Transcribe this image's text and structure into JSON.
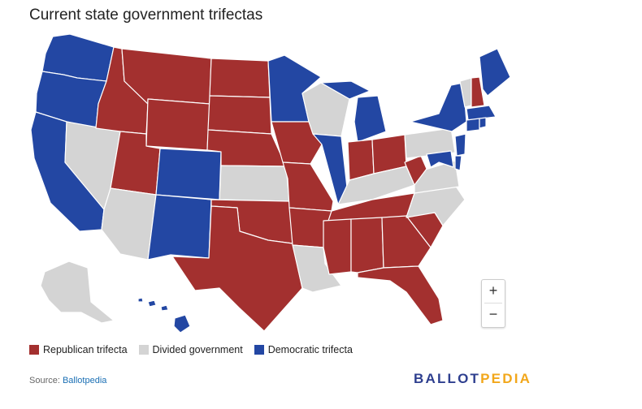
{
  "title": "Current state government trifectas",
  "legend": [
    {
      "label": "Republican trifecta",
      "color": "#a3302f"
    },
    {
      "label": "Divided government",
      "color": "#d4d4d4"
    },
    {
      "label": "Democratic trifecta",
      "color": "#2347a3"
    }
  ],
  "zoom": {
    "in_label": "+",
    "out_label": "−"
  },
  "source": {
    "prefix": "Source: ",
    "link_text": "Ballotpedia"
  },
  "brand": {
    "part1": "BALLOT",
    "part2": "PEDIA"
  },
  "states": {
    "WA": "Democratic trifecta",
    "OR": "Democratic trifecta",
    "CA": "Democratic trifecta",
    "NV": "Divided government",
    "ID": "Republican trifecta",
    "MT": "Republican trifecta",
    "WY": "Republican trifecta",
    "UT": "Republican trifecta",
    "AZ": "Divided government",
    "CO": "Democratic trifecta",
    "NM": "Democratic trifecta",
    "ND": "Republican trifecta",
    "SD": "Republican trifecta",
    "NE": "Republican trifecta",
    "KS": "Divided government",
    "OK": "Republican trifecta",
    "TX": "Republican trifecta",
    "MN": "Democratic trifecta",
    "IA": "Republican trifecta",
    "MO": "Republican trifecta",
    "AR": "Republican trifecta",
    "LA": "Divided government",
    "WI": "Divided government",
    "IL": "Democratic trifecta",
    "MI": "Democratic trifecta",
    "IN": "Republican trifecta",
    "OH": "Republican trifecta",
    "KY": "Divided government",
    "TN": "Republican trifecta",
    "MS": "Republican trifecta",
    "AL": "Republican trifecta",
    "GA": "Republican trifecta",
    "FL": "Republican trifecta",
    "SC": "Republican trifecta",
    "NC": "Divided government",
    "VA": "Divided government",
    "WV": "Republican trifecta",
    "PA": "Divided government",
    "NY": "Democratic trifecta",
    "VT": "Divided government",
    "NH": "Republican trifecta",
    "ME": "Democratic trifecta",
    "MA": "Democratic trifecta",
    "RI": "Democratic trifecta",
    "CT": "Democratic trifecta",
    "NJ": "Democratic trifecta",
    "DE": "Democratic trifecta",
    "MD": "Democratic trifecta",
    "AK": "Divided government",
    "HI": "Democratic trifecta"
  }
}
